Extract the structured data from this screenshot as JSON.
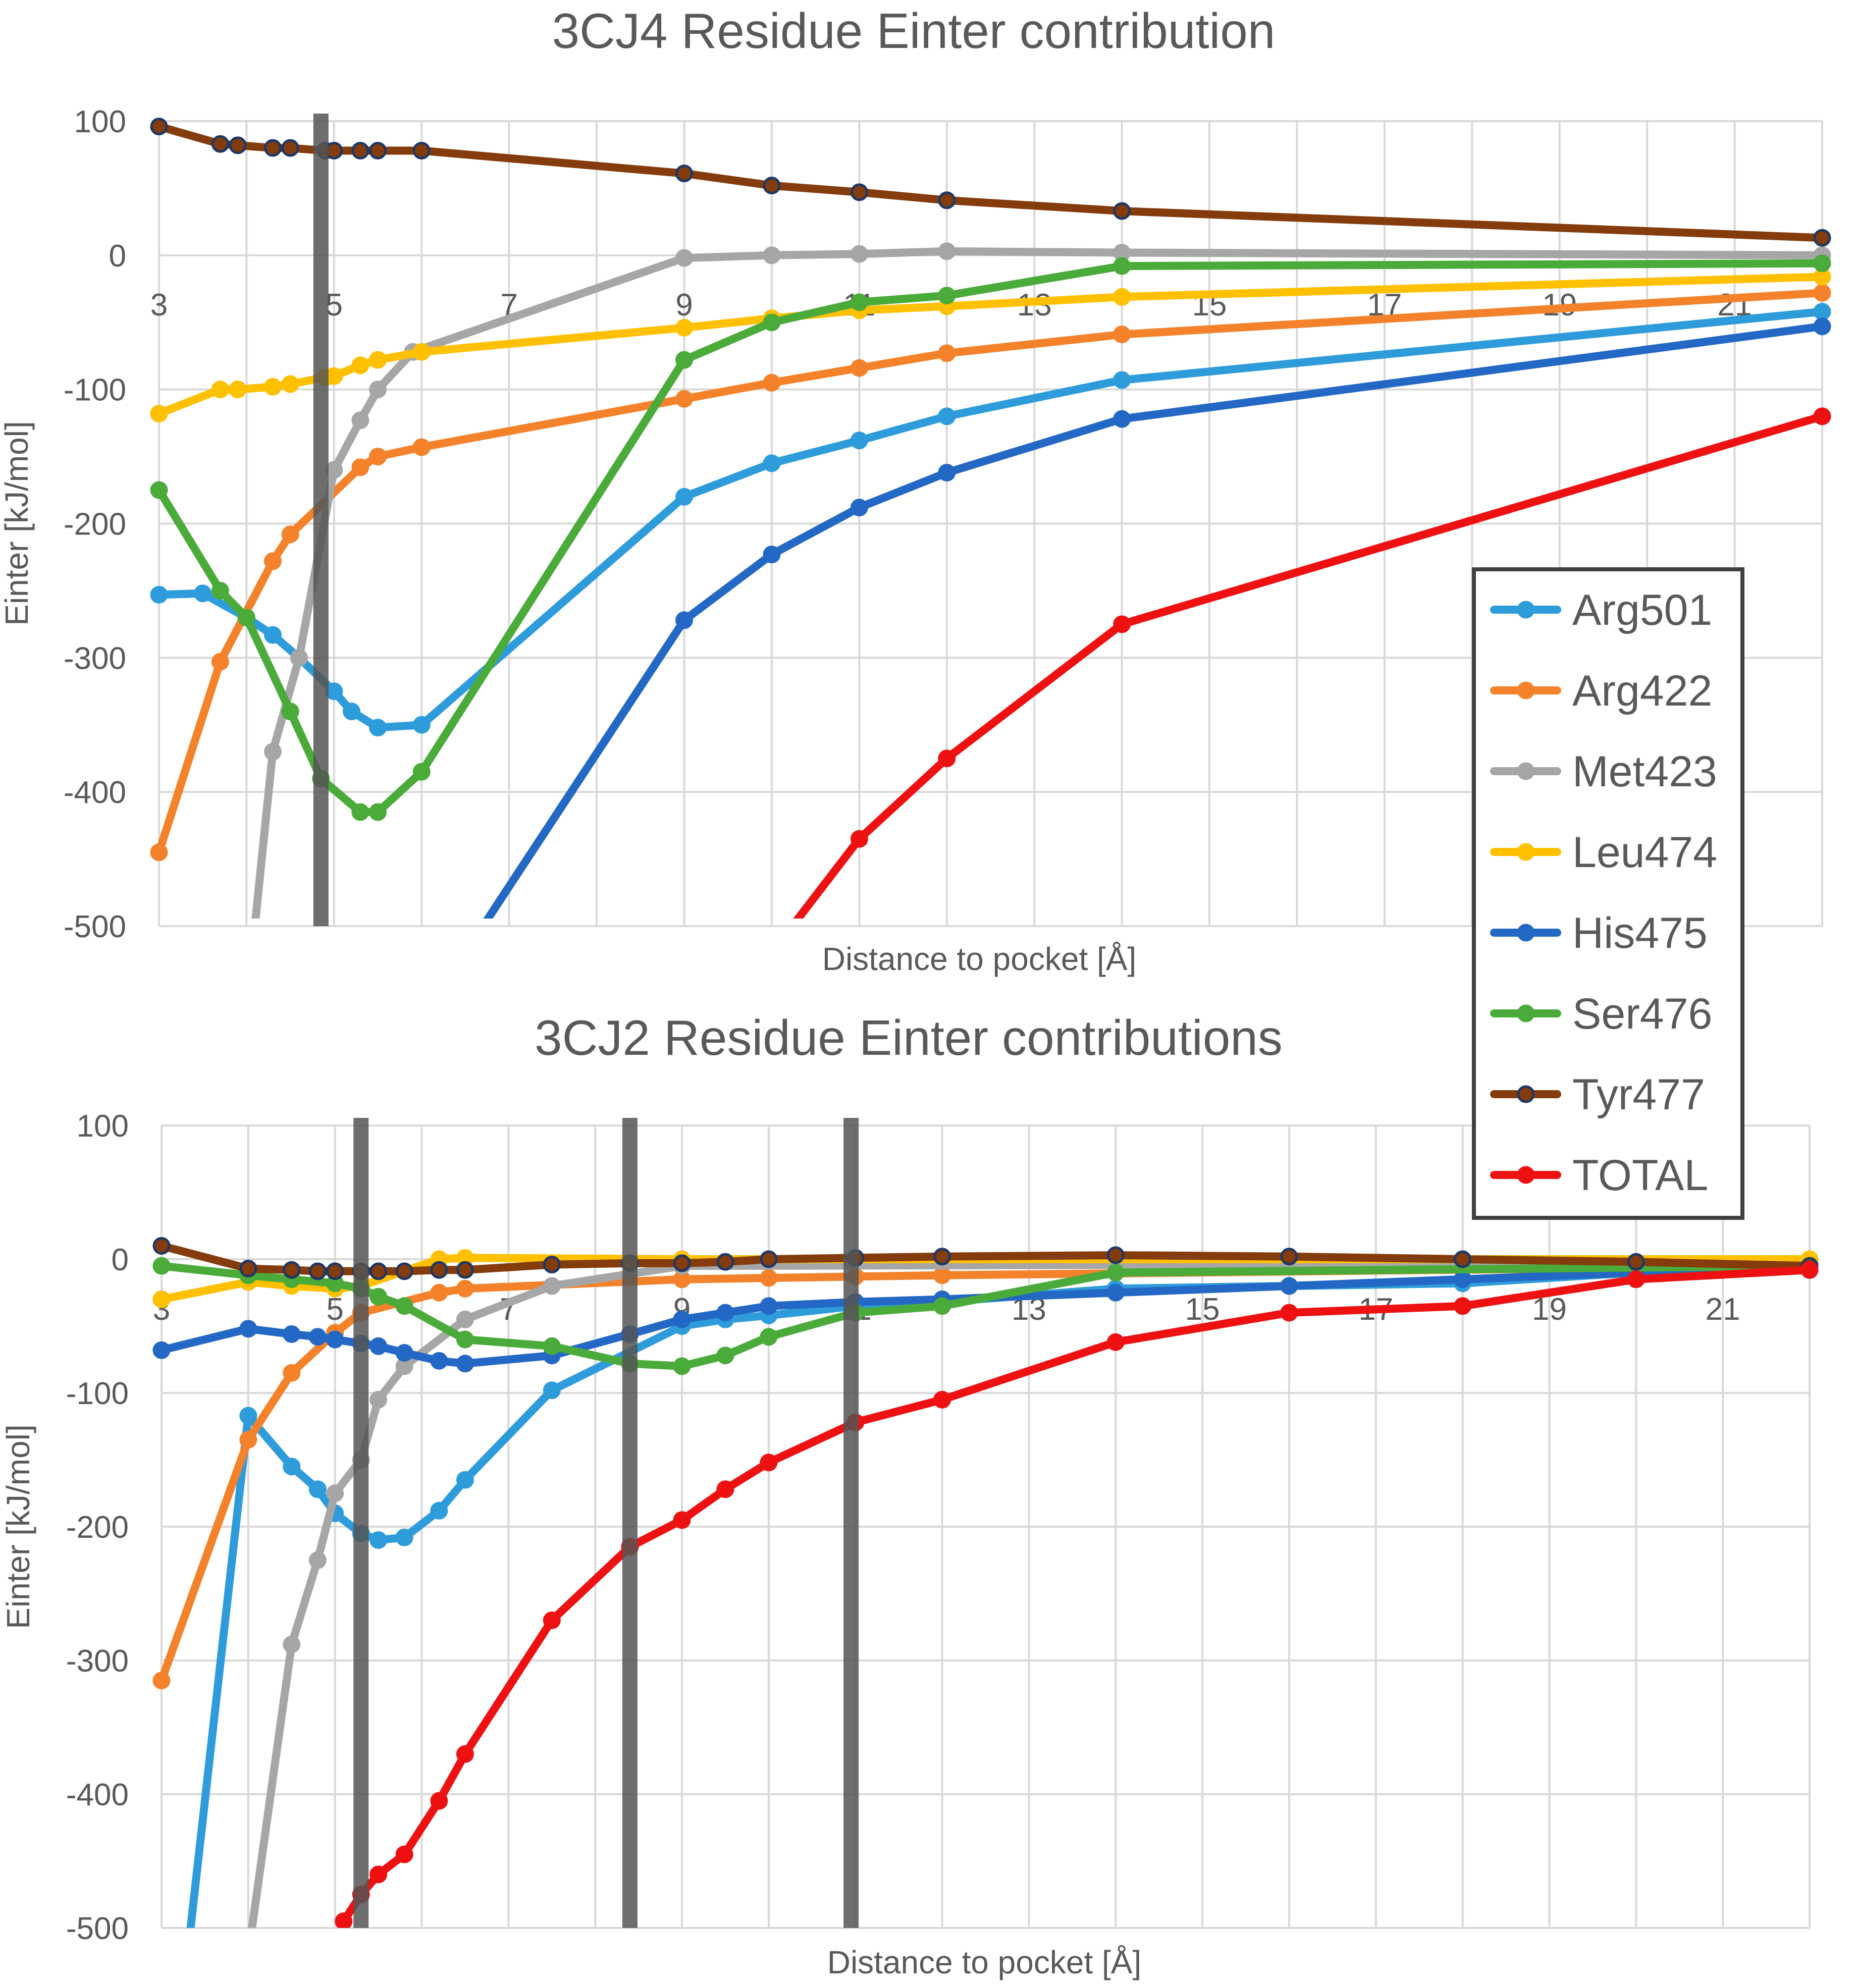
{
  "colors": {
    "Arg501": "#2e9cdb",
    "Arg422": "#f4822a",
    "Met423": "#a6a6a6",
    "Leu474": "#ffc000",
    "His475": "#2368c4",
    "Ser476": "#4aab3a",
    "Tyr477": "#843c0c",
    "TOTAL": "#ee1111",
    "marker_line": "#555555",
    "grid": "#d9d9d9",
    "text": "#595959"
  },
  "legend": {
    "placement": "right, between the two charts",
    "items": [
      "Arg501",
      "Arg422",
      "Met423",
      "Leu474",
      "His475",
      "Ser476",
      "Tyr477",
      "TOTAL"
    ]
  },
  "chart_data": [
    {
      "type": "line",
      "title": "3CJ4 Residue Einter contribution",
      "xlabel": "Distance to pocket [Å]",
      "ylabel": "Einter [kJ/mol]",
      "xlim": [
        3,
        22
      ],
      "ylim": [
        -500,
        100
      ],
      "x_ticks": [
        3,
        5,
        7,
        9,
        11,
        13,
        15,
        17,
        19,
        21
      ],
      "y_ticks": [
        100,
        0,
        -100,
        -200,
        -300,
        -400,
        -500
      ],
      "x_tick_labels": [
        "3",
        "5",
        "7",
        "9",
        "11",
        "13",
        "15",
        "17",
        "19",
        "21"
      ],
      "y_tick_labels": [
        "100",
        "0",
        "-100",
        "-200",
        "-300",
        "-400",
        "-500"
      ],
      "vertical_markers": [
        4.85
      ],
      "series": [
        {
          "name": "Arg501",
          "x": [
            3,
            3.5,
            4,
            4.3,
            4.6,
            5,
            5.2,
            5.5,
            6,
            9,
            10,
            11,
            12,
            14,
            22
          ],
          "y": [
            -253,
            -252,
            -270,
            -283,
            -300,
            -325,
            -340,
            -352,
            -350,
            -180,
            -155,
            -138,
            -120,
            -93,
            -42
          ]
        },
        {
          "name": "Arg422",
          "x": [
            3,
            3.7,
            4.3,
            4.5,
            5.3,
            5.5,
            6,
            9,
            10,
            11,
            12,
            14,
            22
          ],
          "y": [
            -445,
            -303,
            -228,
            -208,
            -158,
            -150,
            -143,
            -107,
            -95,
            -84,
            -73,
            -59,
            -28
          ]
        },
        {
          "name": "Met423",
          "x": [
            4,
            4.3,
            4.6,
            5,
            5.3,
            5.5,
            5.9,
            9,
            10,
            11,
            12,
            14,
            22
          ],
          "y": [
            -560,
            -370,
            -300,
            -160,
            -123,
            -100,
            -72,
            -2,
            0,
            1,
            3,
            2,
            0
          ]
        },
        {
          "name": "Leu474",
          "x": [
            3,
            3.7,
            3.9,
            4.3,
            4.5,
            4.9,
            5,
            5.3,
            5.5,
            6,
            9,
            10,
            11,
            12,
            14,
            22
          ],
          "y": [
            -118,
            -100,
            -100,
            -98,
            -96,
            -91,
            -90,
            -82,
            -78,
            -72,
            -54,
            -47,
            -41,
            -38,
            -31,
            -16
          ]
        },
        {
          "name": "His475",
          "x": [
            6.5,
            9,
            10,
            11,
            12,
            14,
            22
          ],
          "y": [
            -520,
            -272,
            -223,
            -188,
            -162,
            -122,
            -53
          ]
        },
        {
          "name": "Ser476",
          "x": [
            3,
            3.7,
            4,
            4.5,
            4.85,
            5.3,
            5.5,
            6,
            9,
            10,
            11,
            12,
            14,
            22
          ],
          "y": [
            -175,
            -250,
            -270,
            -340,
            -390,
            -415,
            -415,
            -385,
            -78,
            -50,
            -35,
            -30,
            -8,
            -6
          ]
        },
        {
          "name": "Tyr477",
          "x": [
            3,
            3.7,
            3.9,
            4.3,
            4.5,
            4.9,
            5,
            5.3,
            5.5,
            6,
            9,
            10,
            11,
            12,
            14,
            22
          ],
          "y": [
            96,
            83,
            82,
            80,
            80,
            78,
            78,
            78,
            78,
            78,
            61,
            52,
            47,
            41,
            33,
            13
          ]
        },
        {
          "name": "TOTAL",
          "x": [
            10,
            11,
            12,
            14,
            22
          ],
          "y": [
            -520,
            -435,
            -375,
            -275,
            -120
          ]
        }
      ]
    },
    {
      "type": "line",
      "title": "3CJ2 Residue Einter contributions",
      "xlabel": "Distance to pocket [Å]",
      "ylabel": "Einter [kJ/mol]",
      "xlim": [
        3,
        22
      ],
      "ylim": [
        -500,
        100
      ],
      "x_ticks": [
        3,
        5,
        7,
        9,
        11,
        13,
        15,
        17,
        19,
        21
      ],
      "y_ticks": [
        100,
        0,
        -100,
        -200,
        -300,
        -400,
        -500
      ],
      "x_tick_labels": [
        "3",
        "5",
        "7",
        "9",
        "11",
        "13",
        "15",
        "17",
        "19",
        "21"
      ],
      "y_tick_labels": [
        "100",
        "0",
        "-100",
        "-200",
        "-300",
        "-400",
        "-500"
      ],
      "vertical_markers": [
        5.3,
        8.4,
        10.95
      ],
      "series": [
        {
          "name": "Arg501",
          "x": [
            3.3,
            4,
            4.5,
            4.8,
            5,
            5.3,
            5.5,
            5.8,
            6.2,
            6.5,
            7.5,
            9,
            9.5,
            10,
            11,
            12,
            14,
            16,
            18,
            20,
            22
          ],
          "y": [
            -520,
            -117,
            -155,
            -172,
            -190,
            -205,
            -210,
            -208,
            -188,
            -165,
            -98,
            -50,
            -45,
            -42,
            -35,
            -32,
            -22,
            -20,
            -18,
            -10,
            -8
          ]
        },
        {
          "name": "Arg422",
          "x": [
            3,
            4,
            4.5,
            5,
            5.3,
            6.2,
            6.5,
            9,
            10,
            11,
            12,
            22
          ],
          "y": [
            -315,
            -135,
            -85,
            -55,
            -40,
            -25,
            -22,
            -15,
            -14,
            -13,
            -12,
            -5
          ]
        },
        {
          "name": "Met423",
          "x": [
            4,
            4.5,
            4.8,
            5,
            5.3,
            5.5,
            5.8,
            6.5,
            7.5,
            9,
            22
          ],
          "y": [
            -520,
            -288,
            -225,
            -175,
            -150,
            -105,
            -80,
            -45,
            -20,
            -5,
            -3
          ]
        },
        {
          "name": "Leu474",
          "x": [
            3,
            4,
            4.5,
            5,
            5.3,
            6.2,
            6.5,
            9,
            22
          ],
          "y": [
            -30,
            -17,
            -20,
            -22,
            -20,
            0,
            1,
            0,
            0
          ]
        },
        {
          "name": "His475",
          "x": [
            3,
            4,
            4.5,
            4.8,
            5,
            5.3,
            5.5,
            5.8,
            6.2,
            6.5,
            7.5,
            8.4,
            9,
            9.5,
            10,
            11,
            12,
            14,
            16,
            18,
            20,
            22
          ],
          "y": [
            -68,
            -52,
            -56,
            -58,
            -60,
            -63,
            -65,
            -70,
            -76,
            -78,
            -72,
            -56,
            -45,
            -40,
            -35,
            -32,
            -30,
            -25,
            -20,
            -15,
            -10,
            -8
          ]
        },
        {
          "name": "Ser476",
          "x": [
            3,
            4,
            4.5,
            5,
            5.3,
            5.5,
            5.8,
            6.5,
            7.5,
            8.4,
            9,
            9.5,
            10,
            11,
            12,
            14,
            22
          ],
          "y": [
            -5,
            -12,
            -15,
            -18,
            -22,
            -28,
            -35,
            -60,
            -65,
            -78,
            -80,
            -72,
            -58,
            -40,
            -35,
            -10,
            -5
          ]
        },
        {
          "name": "Tyr477",
          "x": [
            3,
            4,
            4.5,
            4.8,
            5,
            5.3,
            5.5,
            5.8,
            6.2,
            6.5,
            7.5,
            8.4,
            9,
            9.5,
            10,
            11,
            12,
            14,
            16,
            18,
            20,
            22
          ],
          "y": [
            10,
            -7,
            -8,
            -9,
            -9,
            -9,
            -9,
            -9,
            -8,
            -8,
            -4,
            -3,
            -3,
            -2,
            0,
            1,
            2,
            3,
            2,
            0,
            -2,
            -5
          ]
        },
        {
          "name": "TOTAL",
          "x": [
            5.1,
            5.3,
            5.5,
            5.8,
            6.2,
            6.5,
            7.5,
            8.4,
            9,
            9.5,
            10,
            11,
            12,
            14,
            16,
            18,
            20,
            22
          ],
          "y": [
            -495,
            -475,
            -460,
            -445,
            -405,
            -370,
            -270,
            -215,
            -195,
            -172,
            -152,
            -122,
            -105,
            -62,
            -40,
            -35,
            -15,
            -8
          ]
        }
      ]
    }
  ]
}
